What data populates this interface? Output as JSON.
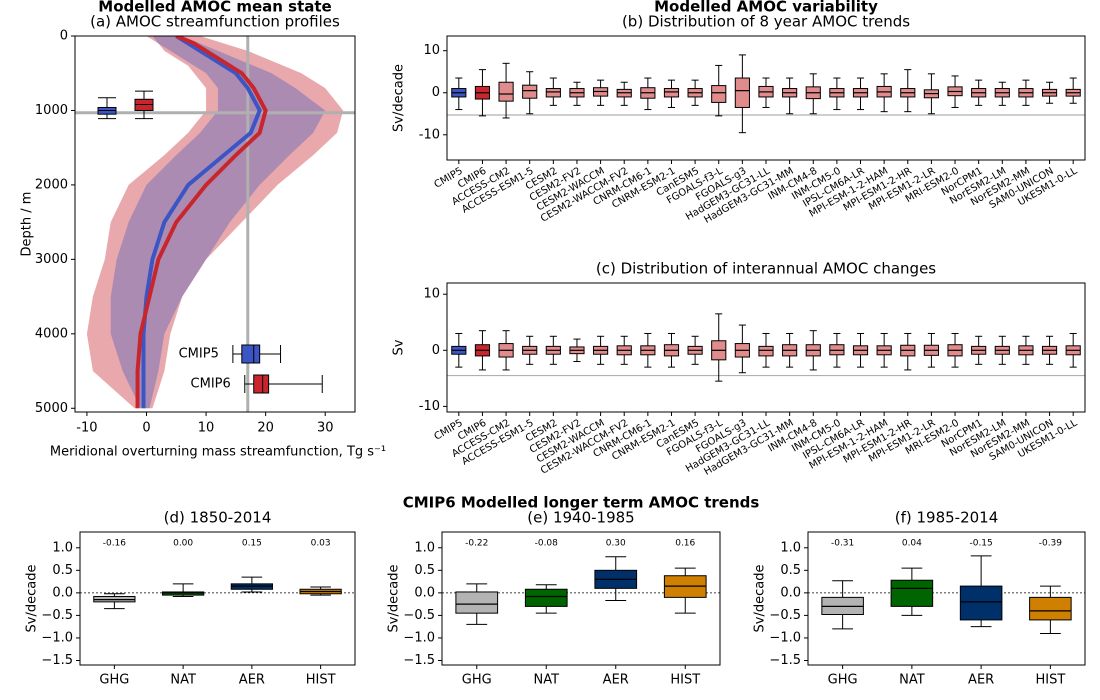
{
  "chart_data": [
    {
      "type": "profile",
      "suptitle": "Modelled AMOC mean state",
      "title": "(a) AMOC streamfunction profiles",
      "xlabel": "Meridional overturning mass streamfunction, Tg s⁻¹",
      "ylabel": "Depth / m",
      "xlim": [
        -12,
        35
      ],
      "ylim": [
        5050,
        0
      ],
      "xticks": [
        -10,
        0,
        10,
        20,
        30
      ],
      "yticks": [
        0,
        1000,
        2000,
        3000,
        4000,
        5000
      ],
      "vline": 17,
      "hline": 1030,
      "ref_color": "#b0b0b0",
      "depth": [
        0,
        100,
        200,
        300,
        400,
        500,
        700,
        1000,
        1300,
        1600,
        2000,
        2500,
        3000,
        3500,
        4000,
        4500,
        5000
      ],
      "series": [
        {
          "name": "CMIP5",
          "color": "#3b55c4",
          "values": [
            5,
            7,
            9,
            11,
            13,
            15,
            17,
            19,
            17.5,
            13,
            7,
            3,
            1,
            0,
            -0.5,
            -0.5,
            -0.5
          ],
          "low": [
            1,
            2,
            4,
            6,
            8,
            10,
            12,
            12,
            9,
            5,
            0,
            -3,
            -5,
            -6,
            -6,
            -4,
            -1
          ],
          "high": [
            6,
            9,
            12,
            15,
            18,
            21,
            25,
            30,
            28,
            24,
            19,
            14,
            10,
            6,
            3,
            2,
            0.5
          ],
          "depth_box": {
            "low": 830,
            "q1": 960,
            "median": 1000,
            "q3": 1050,
            "high": 1110
          },
          "strength_box": {
            "low": 14.5,
            "q1": 16,
            "median": 18,
            "q3": 19,
            "high": 22.5
          }
        },
        {
          "name": "CMIP6",
          "color": "#c8262c",
          "values": [
            5,
            8,
            10,
            12,
            14,
            16,
            18,
            20,
            19,
            15,
            10,
            5,
            2,
            0.5,
            -1,
            -1.5,
            -1.5
          ],
          "low": [
            0,
            2,
            3,
            5,
            7,
            8,
            10,
            10,
            7,
            3,
            -3,
            -6,
            -7,
            -9,
            -10,
            -9,
            -2
          ],
          "high": [
            9,
            13,
            17,
            20,
            23,
            26,
            30,
            33,
            32,
            28,
            22,
            16,
            10,
            6,
            4,
            3,
            1
          ],
          "depth_box": {
            "low": 740,
            "q1": 850,
            "median": 920,
            "q3": 1000,
            "high": 1110
          },
          "strength_box": {
            "low": 16.5,
            "q1": 18,
            "median": 19.5,
            "q3": 20.5,
            "high": 29.5
          }
        }
      ]
    },
    {
      "type": "box",
      "suptitle": "Modelled AMOC variability",
      "title": "(b) Distribution of 8 year AMOC trends",
      "ylabel": "Sv/decade",
      "ylim": [
        -16,
        13.5
      ],
      "yticks": [
        -10,
        0,
        10
      ],
      "hline": -5.3,
      "hline_style": "solid",
      "hline_color": "#b0b0b0",
      "label_rotation": -30,
      "categories": [
        "CMIP5",
        "CMIP6",
        "ACCESS-CM2",
        "ACCESS-ESM1-5",
        "CESM2",
        "CESM2-FV2",
        "CESM2-WACCM",
        "CESM2-WACCM-FV2",
        "CNRM-CM6-1",
        "CNRM-ESM2-1",
        "CanESM5",
        "FGOALS-f3-L",
        "FGOALS-g3",
        "HadGEM3-GC31-LL",
        "HadGEM3-GC31-MM",
        "INM-CM4-8",
        "INM-CM5-0",
        "IPSL-CM6A-LR",
        "MPI-ESM-1-2-HAM",
        "MPI-ESM1-2-HR",
        "MPI-ESM1-2-LR",
        "MRI-ESM2-0",
        "NorCPM1",
        "NorESM2-LM",
        "NorESM2-MM",
        "SAM0-UNICON",
        "UKESM1-0-LL"
      ],
      "colors": [
        "#3b55c4",
        "#c8262c",
        "#e08c8c",
        "#e08c8c",
        "#e08c8c",
        "#e08c8c",
        "#e08c8c",
        "#e08c8c",
        "#e08c8c",
        "#e08c8c",
        "#e08c8c",
        "#e08c8c",
        "#e08c8c",
        "#e08c8c",
        "#e08c8c",
        "#e08c8c",
        "#e08c8c",
        "#e08c8c",
        "#e08c8c",
        "#e08c8c",
        "#e08c8c",
        "#e08c8c",
        "#e08c8c",
        "#e08c8c",
        "#e08c8c",
        "#e08c8c",
        "#e08c8c"
      ],
      "median": [
        0,
        0,
        -0.3,
        0.5,
        0.2,
        0,
        0.3,
        0,
        0,
        0.2,
        0,
        0,
        0.5,
        0.2,
        0,
        0,
        0,
        0,
        0.2,
        0,
        -0.2,
        0.3,
        0,
        0,
        0,
        0,
        0
      ],
      "q1": [
        -1,
        -1.5,
        -2,
        -1.3,
        -1,
        -1,
        -0.8,
        -1,
        -1.3,
        -1,
        -1,
        -2.3,
        -3.5,
        -1,
        -1,
        -1.4,
        -1,
        -1,
        -1,
        -1,
        -1.2,
        -0.7,
        -1,
        -1,
        -1,
        -0.8,
        -0.8
      ],
      "q3": [
        1,
        1.5,
        2.5,
        1.8,
        1,
        1,
        1.2,
        0.8,
        1.2,
        1,
        1,
        1.7,
        3.5,
        1.5,
        1,
        1.4,
        1,
        1,
        1.5,
        1,
        0.7,
        1.4,
        1,
        1,
        1,
        0.8,
        0.8
      ],
      "low": [
        -4,
        -5.5,
        -6,
        -5,
        -3,
        -3,
        -3,
        -3,
        -4,
        -3.5,
        -3,
        -5.5,
        -9.5,
        -3.5,
        -5,
        -5,
        -4,
        -4,
        -4.5,
        -4.5,
        -5,
        -3.5,
        -3,
        -3,
        -3,
        -2.5,
        -2.5
      ],
      "high": [
        3.5,
        5.5,
        7,
        5,
        3.5,
        2.5,
        3,
        2.5,
        3.5,
        3,
        3,
        6.5,
        9,
        3.5,
        3.5,
        4.5,
        3.5,
        3.5,
        4.5,
        5.5,
        4.5,
        4,
        3,
        2.5,
        3,
        2.5,
        3.5
      ]
    },
    {
      "type": "box",
      "title": "(c) Distribution of interannual AMOC changes",
      "ylabel": "Sv",
      "ylim": [
        -11,
        12
      ],
      "yticks": [
        -10,
        0,
        10
      ],
      "hline": -4.5,
      "hline_style": "solid",
      "hline_color": "#b0b0b0",
      "label_rotation": -30,
      "categories": [
        "CMIP5",
        "CMIP6",
        "ACCESS-CM2",
        "ACCESS-ESM1-5",
        "CESM2",
        "CESM2-FV2",
        "CESM2-WACCM",
        "CESM2-WACCM-FV2",
        "CNRM-CM6-1",
        "CNRM-ESM2-1",
        "CanESM5",
        "FGOALS-f3-L",
        "FGOALS-g3",
        "HadGEM3-GC31-LL",
        "HadGEM3-GC31-MM",
        "INM-CM4-8",
        "INM-CM5-0",
        "IPSL-CM6A-LR",
        "MPI-ESM-1-2-HAM",
        "MPI-ESM1-2-HR",
        "MPI-ESM1-2-LR",
        "MRI-ESM2-0",
        "NorCPM1",
        "NorESM2-LM",
        "NorESM2-MM",
        "SAM0-UNICON",
        "UKESM1-0-LL"
      ],
      "colors": [
        "#3b55c4",
        "#c8262c",
        "#e08c8c",
        "#e08c8c",
        "#e08c8c",
        "#e08c8c",
        "#e08c8c",
        "#e08c8c",
        "#e08c8c",
        "#e08c8c",
        "#e08c8c",
        "#e08c8c",
        "#e08c8c",
        "#e08c8c",
        "#e08c8c",
        "#e08c8c",
        "#e08c8c",
        "#e08c8c",
        "#e08c8c",
        "#e08c8c",
        "#e08c8c",
        "#e08c8c",
        "#e08c8c",
        "#e08c8c",
        "#e08c8c",
        "#e08c8c",
        "#e08c8c"
      ],
      "median": [
        0,
        0,
        0,
        0,
        0,
        0,
        0,
        0,
        0,
        0,
        0,
        0,
        0,
        0,
        0,
        0,
        0,
        0,
        0,
        0,
        0,
        0,
        0,
        0,
        0,
        0,
        0
      ],
      "q1": [
        -0.7,
        -1,
        -1.2,
        -0.7,
        -0.7,
        -0.6,
        -0.7,
        -0.8,
        -0.8,
        -1,
        -0.7,
        -1.7,
        -1.2,
        -1,
        -1,
        -1,
        -0.8,
        -0.8,
        -0.8,
        -1,
        -0.9,
        -1,
        -0.7,
        -0.7,
        -0.8,
        -0.7,
        -0.8
      ],
      "q3": [
        0.7,
        1,
        1.2,
        0.7,
        0.7,
        0.6,
        0.7,
        0.8,
        0.8,
        1,
        0.7,
        1.7,
        1.2,
        0.7,
        1,
        1,
        1,
        0.8,
        0.8,
        0.9,
        0.9,
        1,
        0.7,
        0.7,
        0.8,
        0.7,
        0.8
      ],
      "low": [
        -3,
        -3.5,
        -3.5,
        -2.5,
        -2.5,
        -2,
        -2.5,
        -2.5,
        -3,
        -3,
        -2.5,
        -5.5,
        -4,
        -3,
        -3,
        -3.5,
        -3,
        -3,
        -3,
        -3.5,
        -3,
        -3,
        -2.5,
        -2.5,
        -2.5,
        -2.5,
        -3
      ],
      "high": [
        3,
        3.5,
        3.5,
        2.5,
        2.5,
        2,
        2.5,
        2.5,
        3,
        3,
        2.5,
        6.5,
        4.5,
        3,
        3,
        3.5,
        3,
        3,
        3,
        3,
        3,
        3,
        2.5,
        2.5,
        2.5,
        2.5,
        3
      ]
    },
    {
      "type": "box",
      "title": "(d) 1850-2014",
      "ylabel": "Sv/decade",
      "ylim": [
        -1.6,
        1.35
      ],
      "yticks": [
        {
          "value": -1.5,
          "label": "−1.5"
        },
        {
          "value": -1,
          "label": "−1.0"
        },
        {
          "value": -0.5,
          "label": "−0.5"
        },
        {
          "value": 0,
          "label": "0.0"
        },
        0.5,
        {
          "value": 1,
          "label": "1.0"
        }
      ],
      "hline": 0,
      "hline_style": "dotted",
      "hline_color": "#000000",
      "label_rotation": 0,
      "categories": [
        "GHG",
        "NAT",
        "AER",
        "HIST"
      ],
      "colors": [
        "#b3b3b3",
        "#006400",
        "#00306a",
        "#d08000"
      ],
      "median": [
        -0.15,
        0,
        0.15,
        0.03
      ],
      "q1": [
        -0.2,
        -0.05,
        0.08,
        -0.02
      ],
      "q3": [
        -0.08,
        0.02,
        0.2,
        0.08
      ],
      "low": [
        -0.35,
        -0.08,
        0.02,
        -0.05
      ],
      "high": [
        -0.02,
        0.2,
        0.35,
        0.13
      ],
      "values": [
        -0.16,
        0,
        0.15,
        0.03
      ],
      "value_labels": [
        "-0.16",
        "0.00",
        "0.15",
        "0.03"
      ]
    },
    {
      "type": "box",
      "suptitle": "CMIP6 Modelled longer term AMOC trends",
      "title": "(e) 1940-1985",
      "ylabel": "Sv/decade",
      "ylim": [
        -1.6,
        1.35
      ],
      "yticks": [
        {
          "value": -1.5,
          "label": "−1.5"
        },
        {
          "value": -1,
          "label": "−1.0"
        },
        {
          "value": -0.5,
          "label": "−0.5"
        },
        {
          "value": 0,
          "label": "0.0"
        },
        0.5,
        {
          "value": 1,
          "label": "1.0"
        }
      ],
      "hline": 0,
      "hline_style": "dotted",
      "hline_color": "#000000",
      "label_rotation": 0,
      "categories": [
        "GHG",
        "NAT",
        "AER",
        "HIST"
      ],
      "colors": [
        "#b3b3b3",
        "#006400",
        "#00306a",
        "#d08000"
      ],
      "median": [
        -0.25,
        -0.08,
        0.3,
        0.15
      ],
      "q1": [
        -0.45,
        -0.3,
        0.1,
        -0.1
      ],
      "q3": [
        0.02,
        0.08,
        0.5,
        0.38
      ],
      "low": [
        -0.7,
        -0.45,
        -0.17,
        -0.45
      ],
      "high": [
        0.2,
        0.18,
        0.8,
        0.55
      ],
      "values": [
        -0.22,
        -0.08,
        0.3,
        0.16
      ],
      "value_labels": [
        "-0.22",
        "-0.08",
        "0.30",
        "0.16"
      ]
    },
    {
      "type": "box",
      "title": "(f) 1985-2014",
      "ylabel": "Sv/decade",
      "ylim": [
        -1.6,
        1.35
      ],
      "yticks": [
        {
          "value": -1.5,
          "label": "−1.5"
        },
        {
          "value": -1,
          "label": "−1.0"
        },
        {
          "value": -0.5,
          "label": "−0.5"
        },
        {
          "value": 0,
          "label": "0.0"
        },
        0.5,
        {
          "value": 1,
          "label": "1.0"
        }
      ],
      "hline": 0,
      "hline_style": "dotted",
      "hline_color": "#000000",
      "label_rotation": 0,
      "categories": [
        "GHG",
        "NAT",
        "AER",
        "HIST"
      ],
      "colors": [
        "#b3b3b3",
        "#006400",
        "#00306a",
        "#d08000"
      ],
      "median": [
        -0.3,
        0.1,
        -0.2,
        -0.4
      ],
      "q1": [
        -0.48,
        -0.3,
        -0.6,
        -0.6
      ],
      "q3": [
        -0.1,
        0.28,
        0.15,
        -0.1
      ],
      "low": [
        -0.8,
        -0.5,
        -0.75,
        -0.9
      ],
      "high": [
        0.27,
        0.55,
        0.82,
        0.15
      ],
      "values": [
        -0.31,
        0.04,
        -0.15,
        -0.39
      ],
      "value_labels": [
        "-0.31",
        "0.04",
        "-0.15",
        "-0.39"
      ]
    }
  ]
}
